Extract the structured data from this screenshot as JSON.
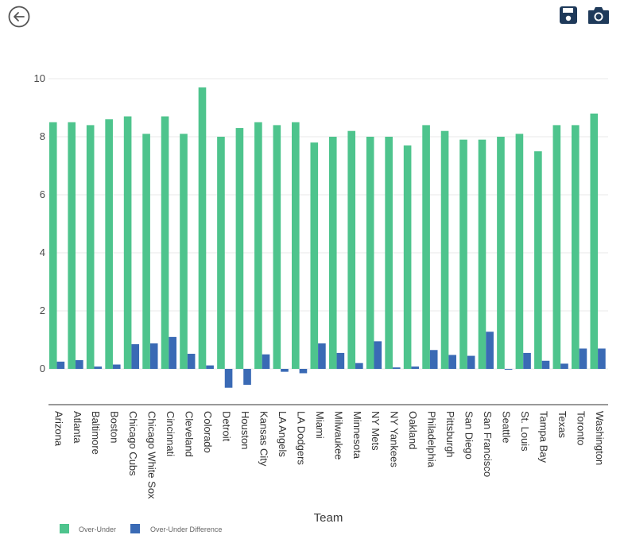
{
  "toolbar": {
    "back_icon": "back-arrow-circle-icon",
    "save_icon": "floppy-disk-icon",
    "camera_icon": "camera-icon",
    "icon_color": "#1f3a5a"
  },
  "chart_data": {
    "type": "bar",
    "xlabel": "Team",
    "ylabel": "",
    "ylim": [
      -1.2,
      10.4
    ],
    "yticks": [
      0,
      2,
      4,
      6,
      8,
      10
    ],
    "grid": true,
    "legend_placement": "bottom-left",
    "categories": [
      "Arizona",
      "Atlanta",
      "Baltimore",
      "Boston",
      "Chicago Cubs",
      "Chicago White Sox",
      "Cincinnati",
      "Cleveland",
      "Colorado",
      "Detroit",
      "Houston",
      "Kansas City",
      "LA Angels",
      "LA Dodgers",
      "Miami",
      "Milwaukee",
      "Minnesota",
      "NY Mets",
      "NY Yankees",
      "Oakland",
      "Philadelphia",
      "Pittsburgh",
      "San Diego",
      "San Francisco",
      "Seattle",
      "St. Louis",
      "Tampa Bay",
      "Texas",
      "Toronto",
      "Washington"
    ],
    "series": [
      {
        "name": "Over-Under",
        "color": "#4ec48d",
        "values": [
          8.5,
          8.5,
          8.4,
          8.6,
          8.7,
          8.1,
          8.7,
          8.1,
          9.7,
          8.0,
          8.3,
          8.5,
          8.4,
          8.5,
          7.8,
          8.0,
          8.2,
          8.0,
          8.0,
          7.7,
          8.4,
          8.2,
          7.9,
          7.9,
          8.0,
          8.1,
          7.5,
          8.4,
          8.4,
          8.8
        ]
      },
      {
        "name": "Over-Under Difference",
        "color": "#3a6ab5",
        "values": [
          0.25,
          0.3,
          0.08,
          0.15,
          0.85,
          0.88,
          1.1,
          0.52,
          0.12,
          -0.65,
          -0.55,
          0.5,
          -0.1,
          -0.15,
          0.88,
          0.55,
          0.2,
          0.95,
          0.05,
          0.08,
          0.65,
          0.48,
          0.45,
          1.28,
          -0.03,
          0.55,
          0.28,
          0.18,
          0.7,
          0.7
        ]
      }
    ]
  }
}
